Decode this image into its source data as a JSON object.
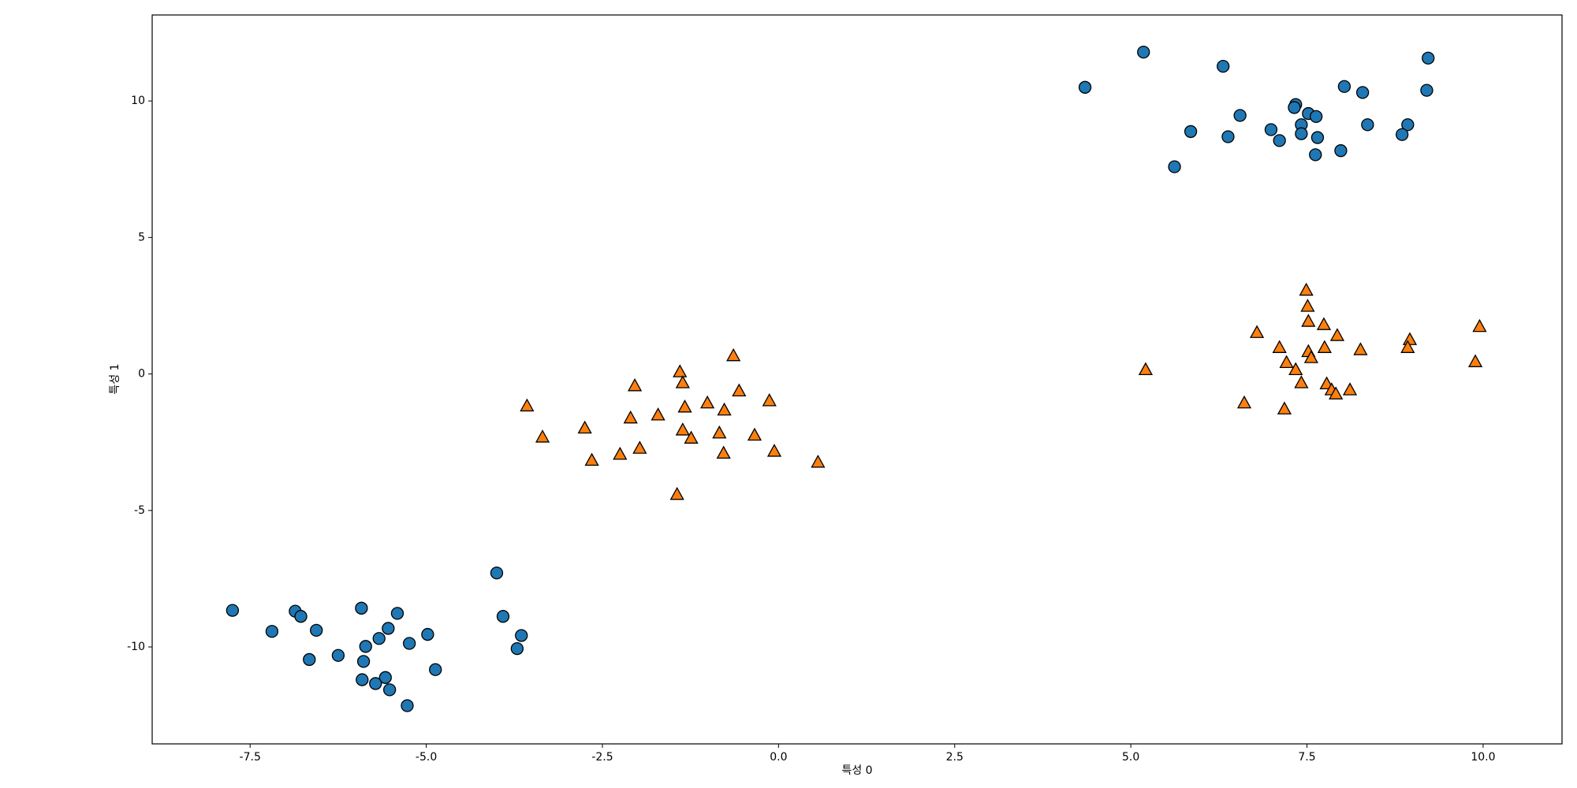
{
  "chart_data": {
    "type": "scatter",
    "xlabel": "특성 0",
    "ylabel": "특성 1",
    "xlim": [
      -8.89,
      11.12
    ],
    "ylim": [
      -13.55,
      13.15
    ],
    "xticks": [
      {
        "value": -7.5,
        "label": "-7.5"
      },
      {
        "value": -5,
        "label": "-5.0"
      },
      {
        "value": -2.5,
        "label": "-2.5"
      },
      {
        "value": 0,
        "label": "0.0"
      },
      {
        "value": 2.5,
        "label": "2.5"
      },
      {
        "value": 5,
        "label": "5.0"
      },
      {
        "value": 7.5,
        "label": "7.5"
      },
      {
        "value": 10,
        "label": "10.0"
      }
    ],
    "yticks": [
      -10,
      -5,
      0,
      5,
      10
    ],
    "grid": false,
    "series": [
      {
        "color": "#1f77b4",
        "marker": "circle",
        "x": [
          4.35,
          5.18,
          6.31,
          9.22,
          8.03,
          8.29,
          9.2,
          7.34,
          7.32,
          7.52,
          7.63,
          6.55,
          7.42,
          8.36,
          8.93,
          5.85,
          6.99,
          7.42,
          6.38,
          7.65,
          7.11,
          8.85,
          7.98,
          7.62,
          5.62,
          -7.75,
          -6.86,
          -6.78,
          -5.92,
          -5.41,
          -4.0,
          -3.91,
          -7.19,
          -6.56,
          -5.54,
          -4.98,
          -3.65,
          -5.67,
          -5.24,
          -5.86,
          -3.71,
          -6.66,
          -6.25,
          -5.89,
          -4.87,
          -5.58,
          -5.91,
          -5.72,
          -5.52,
          -5.27
        ],
        "values": [
          10.5,
          11.79,
          11.27,
          11.57,
          10.53,
          10.31,
          10.39,
          9.87,
          9.76,
          9.54,
          9.43,
          9.47,
          9.13,
          9.13,
          9.13,
          8.88,
          8.95,
          8.8,
          8.69,
          8.66,
          8.55,
          8.77,
          8.18,
          8.03,
          7.59,
          -8.66,
          -8.69,
          -8.88,
          -8.58,
          -8.77,
          -7.29,
          -8.88,
          -9.43,
          -9.39,
          -9.32,
          -9.54,
          -9.58,
          -9.69,
          -9.87,
          -9.98,
          -10.06,
          -10.46,
          -10.31,
          -10.53,
          -10.83,
          -11.12,
          -11.2,
          -11.34,
          -11.57,
          -12.15
        ]
      },
      {
        "color": "#ff7f0e",
        "marker": "triangle",
        "x": [
          -0.64,
          -1.4,
          -1.36,
          -2.04,
          -0.56,
          -3.57,
          -0.13,
          -1.01,
          -1.33,
          -0.77,
          -1.71,
          -2.1,
          -2.75,
          -1.36,
          -0.84,
          -3.35,
          -1.24,
          -0.34,
          -1.97,
          -0.06,
          -2.25,
          -0.78,
          -2.65,
          0.56,
          -1.44,
          7.49,
          7.51,
          7.52,
          7.74,
          9.95,
          6.79,
          7.93,
          8.96,
          7.11,
          7.75,
          8.93,
          8.26,
          7.52,
          7.56,
          7.21,
          9.89,
          5.21,
          7.34,
          7.42,
          7.78,
          7.85,
          8.11,
          7.91,
          6.61,
          7.18
        ],
        "values": [
          0.66,
          0.07,
          -0.33,
          -0.44,
          -0.63,
          -1.18,
          -0.99,
          -1.07,
          -1.22,
          -1.33,
          -1.51,
          -1.62,
          -1.99,
          -2.06,
          -2.17,
          -2.32,
          -2.36,
          -2.25,
          -2.73,
          -2.84,
          -2.95,
          -2.91,
          -3.17,
          -3.24,
          -4.42,
          3.06,
          2.47,
          1.92,
          1.8,
          1.73,
          1.51,
          1.4,
          1.25,
          0.96,
          0.96,
          0.96,
          0.88,
          0.81,
          0.59,
          0.41,
          0.44,
          0.15,
          0.15,
          -0.33,
          -0.37,
          -0.59,
          -0.59,
          -0.74,
          -1.07,
          -1.29
        ]
      }
    ]
  }
}
